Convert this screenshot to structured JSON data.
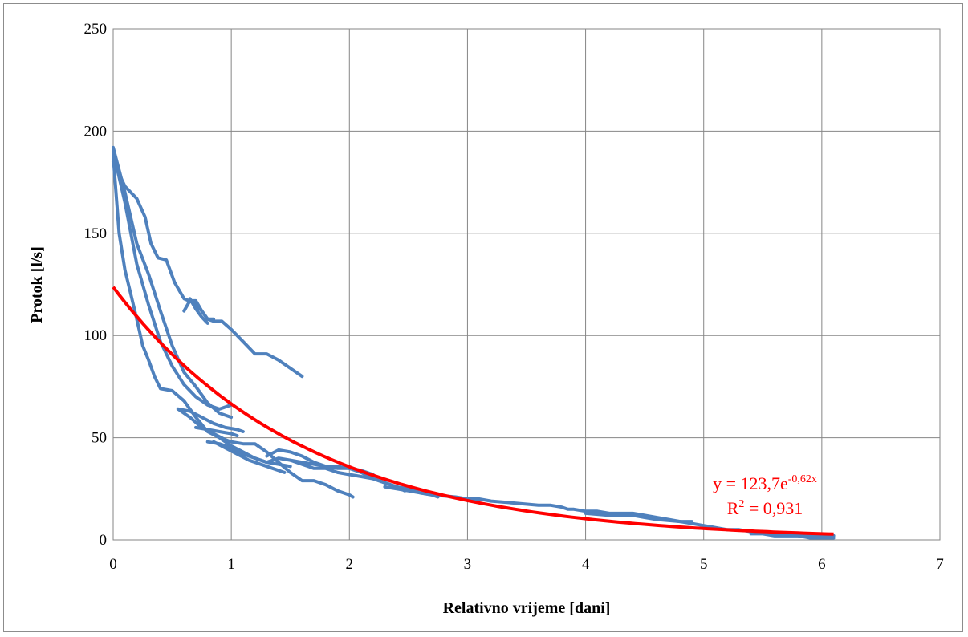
{
  "chart_data": {
    "type": "line",
    "title": "",
    "xlabel": "Relativno vrijeme [dani]",
    "ylabel": "Protok [l/s]",
    "xlim": [
      0,
      7
    ],
    "ylim": [
      0,
      250
    ],
    "x_ticks": [
      0,
      1,
      2,
      3,
      4,
      5,
      6,
      7
    ],
    "y_ticks": [
      0,
      50,
      100,
      150,
      200,
      250
    ],
    "grid": true,
    "legend": "none",
    "series_color": "#4f81bd",
    "trend_color": "#ff0000",
    "series": [
      {
        "x": [
          0,
          0.1,
          0.2,
          0.27,
          0.32,
          0.38,
          0.45,
          0.52,
          0.6,
          0.68,
          0.75,
          0.8,
          0.85,
          0.92,
          1.0,
          1.1,
          1.2,
          1.3,
          1.4,
          1.5,
          1.6
        ],
        "y": [
          185,
          173,
          167,
          158,
          145,
          138,
          137,
          126,
          118,
          116,
          112,
          108,
          107,
          107,
          103,
          97,
          91,
          91,
          88,
          84,
          80
        ]
      },
      {
        "x": [
          0.6,
          0.65,
          0.7,
          0.75,
          0.8,
          0.85
        ],
        "y": [
          112,
          117,
          117,
          112,
          108,
          108
        ]
      },
      {
        "x": [
          0.65,
          0.7,
          0.75,
          0.8
        ],
        "y": [
          118,
          113,
          109,
          106
        ]
      },
      {
        "x": [
          0,
          0.1,
          0.2,
          0.3,
          0.4,
          0.5,
          0.6,
          0.7,
          0.8,
          0.9,
          1.0
        ],
        "y": [
          192,
          170,
          145,
          130,
          112,
          95,
          82,
          75,
          67,
          62,
          60
        ]
      },
      {
        "x": [
          0,
          0.1,
          0.2,
          0.3,
          0.4,
          0.5,
          0.6,
          0.7,
          0.8,
          0.9,
          1.0
        ],
        "y": [
          190,
          165,
          135,
          115,
          97,
          85,
          76,
          70,
          66,
          64,
          66
        ]
      },
      {
        "x": [
          0,
          0.05,
          0.1,
          0.15,
          0.2,
          0.25,
          0.3,
          0.35,
          0.4,
          0.5,
          0.6,
          0.7,
          0.8,
          0.9,
          1.0,
          1.1,
          1.2,
          1.3,
          1.4,
          1.5
        ],
        "y": [
          188,
          150,
          132,
          120,
          108,
          95,
          88,
          80,
          74,
          73,
          68,
          60,
          53,
          50,
          46,
          43,
          40,
          38,
          37,
          36
        ]
      },
      {
        "x": [
          0.55,
          0.65,
          0.75,
          0.85,
          0.95,
          1.0,
          1.1,
          1.2,
          1.3,
          1.4,
          1.5,
          1.6,
          1.7,
          1.8,
          1.9,
          2.0,
          2.03
        ],
        "y": [
          64,
          60,
          55,
          52,
          49,
          48,
          47,
          47,
          43,
          38,
          33,
          29,
          29,
          27,
          24,
          22,
          21
        ]
      },
      {
        "x": [
          0.55,
          0.65,
          0.75,
          0.85,
          0.95,
          1.05,
          1.1
        ],
        "y": [
          64,
          63,
          60,
          57,
          55,
          54,
          53
        ]
      },
      {
        "x": [
          0.7,
          0.8,
          0.9,
          1.0,
          1.05
        ],
        "y": [
          55,
          54,
          53,
          52,
          51
        ]
      },
      {
        "x": [
          0.8,
          0.9,
          1.0,
          1.1,
          1.2,
          1.3,
          1.4,
          1.5,
          1.6,
          1.7,
          1.8,
          1.9,
          2.0,
          2.1,
          2.2,
          2.3,
          2.4,
          2.47
        ],
        "y": [
          48,
          47,
          45,
          42,
          40,
          38,
          40,
          39,
          37,
          35,
          35,
          33,
          32,
          31,
          30,
          28,
          26,
          24
        ]
      },
      {
        "x": [
          0.85,
          0.95,
          1.05,
          1.15,
          1.25,
          1.35,
          1.45
        ],
        "y": [
          48,
          45,
          42,
          39,
          37,
          35,
          33
        ]
      },
      {
        "x": [
          1.3,
          1.4,
          1.5,
          1.6,
          1.7,
          1.8,
          1.9,
          2.0,
          2.1,
          2.2,
          2.3,
          2.4,
          2.5,
          2.6,
          2.7,
          2.75
        ],
        "y": [
          41,
          44,
          43,
          41,
          38,
          36,
          36,
          35,
          33,
          30,
          28,
          26,
          25,
          23,
          22,
          21
        ]
      },
      {
        "x": [
          1.5,
          1.6,
          1.7,
          1.8,
          1.9,
          2.0,
          2.1,
          2.2
        ],
        "y": [
          39,
          38,
          37,
          36,
          35,
          35,
          34,
          32
        ]
      },
      {
        "x": [
          2.3,
          2.5,
          2.7,
          2.9,
          3.0,
          3.1,
          3.2,
          3.4,
          3.6,
          3.7,
          3.8,
          3.85,
          3.9,
          4.0,
          4.1,
          4.2,
          4.3,
          4.4,
          4.5,
          4.6,
          4.7,
          4.8,
          4.9,
          5.0,
          5.1,
          5.2,
          5.3,
          5.4,
          5.5,
          5.6,
          5.7,
          5.8,
          5.9,
          6.0,
          6.1
        ],
        "y": [
          26,
          24,
          22,
          21,
          20,
          20,
          19,
          18,
          17,
          17,
          16,
          15,
          15,
          14,
          14,
          13,
          13,
          13,
          12,
          11,
          10,
          9,
          8,
          7,
          6,
          5,
          5,
          4,
          4,
          3,
          3,
          3,
          2,
          2,
          2
        ]
      },
      {
        "x": [
          4.0,
          4.2,
          4.4,
          4.5,
          4.6,
          4.8,
          4.9
        ],
        "y": [
          13,
          12,
          12,
          11,
          10,
          9,
          9
        ]
      },
      {
        "x": [
          5.4,
          5.5,
          5.6,
          5.7,
          5.8,
          5.9,
          6.0,
          6.1
        ],
        "y": [
          3,
          3,
          2,
          2,
          2,
          1,
          1,
          1
        ]
      }
    ],
    "trendline": {
      "type": "exponential",
      "a": 123.7,
      "b": -0.62,
      "x_range": [
        0,
        6.1
      ]
    },
    "annotations": {
      "equation_base": "y = 123,7e",
      "equation_exp": "-0,62x",
      "r2_prefix": "R",
      "r2_sup": "2",
      "r2_suffix": " = 0,931"
    }
  }
}
